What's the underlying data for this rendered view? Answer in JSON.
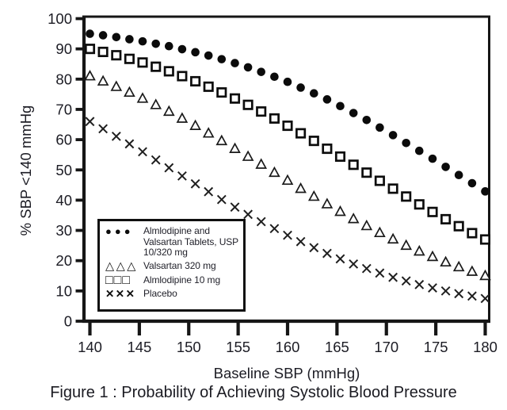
{
  "chart_data": {
    "type": "scatter",
    "title": "Figure 1 : Probability of Achieving Systolic Blood Pressure",
    "xlabel": "Baseline SBP (mmHg)",
    "ylabel": "% SBP <140 mmHg",
    "xlim": [
      140,
      180
    ],
    "ylim": [
      0,
      100
    ],
    "xticks": [
      140,
      145,
      150,
      155,
      160,
      165,
      170,
      175,
      180
    ],
    "yticks": [
      0,
      10,
      20,
      30,
      40,
      50,
      60,
      70,
      80,
      90,
      100
    ],
    "grid": false,
    "legend_position": "inside-lower-left",
    "x": [
      140,
      141.33,
      142.67,
      144,
      145.33,
      146.67,
      148,
      149.33,
      150.67,
      152,
      153.33,
      154.67,
      156,
      157.33,
      158.67,
      160,
      161.33,
      162.67,
      164,
      165.33,
      166.67,
      168,
      169.33,
      170.67,
      172,
      173.33,
      174.67,
      176,
      177.33,
      178.67,
      180
    ],
    "series": [
      {
        "name": "Almlodipine and Valsartan Tablets, USP 10/320 mg",
        "marker": "filled-circle",
        "values": [
          95,
          94.5,
          93.9,
          93.2,
          92.5,
          91.7,
          90.9,
          89.9,
          88.9,
          87.8,
          86.6,
          85.3,
          83.9,
          82.4,
          80.8,
          79.1,
          77.2,
          75.3,
          73.3,
          71.1,
          68.8,
          66.5,
          64,
          61.5,
          58.9,
          56.3,
          53.7,
          51,
          48.3,
          45.6,
          42.9
        ]
      },
      {
        "name": "Valsartan 320 mg",
        "marker": "open-triangle",
        "values": [
          81,
          79.3,
          77.5,
          75.6,
          73.6,
          71.5,
          69.3,
          67,
          64.6,
          62.1,
          59.6,
          57,
          54.4,
          51.8,
          49.1,
          46.5,
          43.8,
          41.2,
          38.7,
          36.2,
          33.8,
          31.5,
          29.2,
          27.1,
          25,
          23.1,
          21.3,
          19.5,
          17.9,
          16.4,
          15
        ]
      },
      {
        "name": "Almlodipine 10 mg",
        "marker": "open-square",
        "values": [
          90,
          89,
          87.9,
          86.7,
          85.5,
          84.1,
          82.6,
          81,
          79.3,
          77.5,
          75.6,
          73.6,
          71.5,
          69.3,
          67,
          64.6,
          62.1,
          59.6,
          57,
          54.4,
          51.7,
          49.1,
          46.4,
          43.8,
          41.2,
          38.6,
          36.1,
          33.7,
          31.4,
          29.1,
          27
        ]
      },
      {
        "name": "Placebo",
        "marker": "x-cross",
        "values": [
          66,
          63.6,
          61.1,
          58.6,
          56,
          53.3,
          50.7,
          48,
          45.4,
          42.8,
          40.2,
          37.7,
          35.3,
          32.9,
          30.6,
          28.4,
          26.3,
          24.3,
          22.4,
          20.6,
          18.9,
          17.4,
          15.9,
          14.5,
          13.3,
          12.1,
          11,
          10,
          9.1,
          8.3,
          7.5
        ]
      }
    ],
    "legend": {
      "items": [
        {
          "glyph": "●●●",
          "lines": [
            "Almlodipine and",
            "Valsartan Tablets, USP",
            "10/320 mg"
          ]
        },
        {
          "glyph": "△△△",
          "lines": [
            "Valsartan 320 mg"
          ]
        },
        {
          "glyph": "□□□",
          "lines": [
            "Almlodipine 10 mg"
          ]
        },
        {
          "glyph": "✕✕✕",
          "lines": [
            "Placebo"
          ]
        }
      ]
    }
  }
}
